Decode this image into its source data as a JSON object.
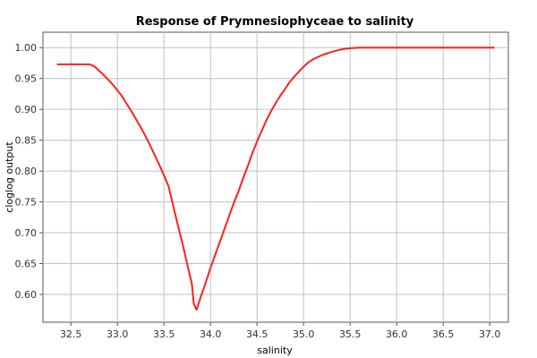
{
  "chart_data": {
    "type": "line",
    "title": "Response of Prymnesiophyceae to salinity",
    "xlabel": "salinity",
    "ylabel": "cloglog output",
    "xlim": [
      32.2,
      37.2
    ],
    "ylim": [
      0.555,
      1.025
    ],
    "x_ticks": [
      "32.5",
      "33.0",
      "33.5",
      "34.0",
      "34.5",
      "35.0",
      "35.5",
      "36.0",
      "36.5",
      "37.0"
    ],
    "y_ticks": [
      "0.60",
      "0.65",
      "0.70",
      "0.75",
      "0.80",
      "0.85",
      "0.90",
      "0.95",
      "1.00"
    ],
    "grid": true,
    "series": [
      {
        "color": "#ff2020",
        "x": [
          32.35,
          32.5,
          32.7,
          32.75,
          32.8,
          32.85,
          32.9,
          32.95,
          33.0,
          33.05,
          33.1,
          33.15,
          33.2,
          33.25,
          33.3,
          33.35,
          33.4,
          33.45,
          33.5,
          33.55,
          33.6,
          33.65,
          33.7,
          33.75,
          33.8,
          33.82,
          33.85,
          33.9,
          33.95,
          34.0,
          34.05,
          34.1,
          34.15,
          34.2,
          34.25,
          34.3,
          34.35,
          34.4,
          34.45,
          34.5,
          34.55,
          34.6,
          34.65,
          34.7,
          34.75,
          34.8,
          34.85,
          34.9,
          34.95,
          35.0,
          35.05,
          35.1,
          35.2,
          35.3,
          35.4,
          35.5,
          35.6,
          35.7,
          36.0,
          36.5,
          37.05
        ],
        "y": [
          0.973,
          0.973,
          0.973,
          0.97,
          0.963,
          0.956,
          0.948,
          0.94,
          0.931,
          0.921,
          0.909,
          0.897,
          0.884,
          0.871,
          0.857,
          0.842,
          0.826,
          0.81,
          0.793,
          0.775,
          0.743,
          0.712,
          0.682,
          0.649,
          0.617,
          0.585,
          0.575,
          0.598,
          0.62,
          0.643,
          0.664,
          0.685,
          0.706,
          0.727,
          0.748,
          0.767,
          0.788,
          0.808,
          0.829,
          0.848,
          0.865,
          0.882,
          0.897,
          0.91,
          0.922,
          0.933,
          0.944,
          0.953,
          0.961,
          0.969,
          0.976,
          0.981,
          0.988,
          0.993,
          0.997,
          0.999,
          1.0,
          1.0,
          1.0,
          1.0,
          1.0
        ]
      }
    ]
  }
}
